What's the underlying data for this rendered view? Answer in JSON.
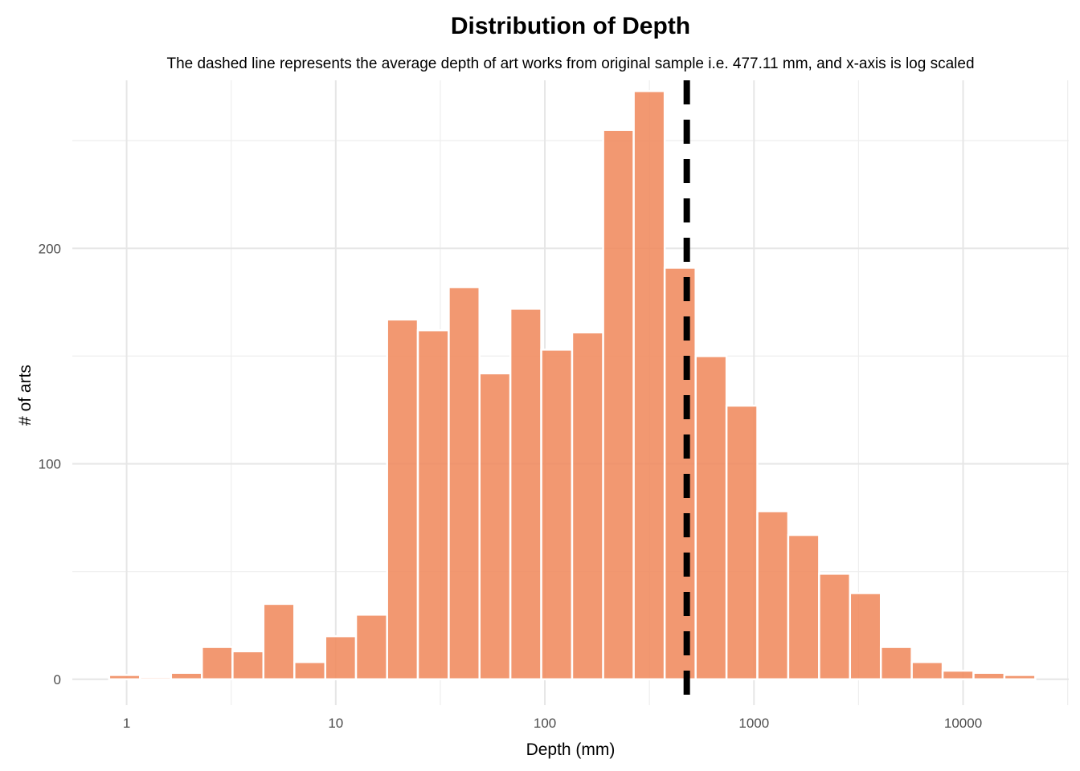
{
  "chart_data": {
    "type": "bar",
    "title": "Distribution of Depth",
    "subtitle": "The dashed line represents the average depth of art works from original sample i.e. 477.11 mm, and x-axis is log scaled",
    "xlabel": "Depth (mm)",
    "ylabel": "# of arts",
    "x_scale": "log10",
    "xlim": [
      0.55,
      32000
    ],
    "ylim": [
      -12,
      278
    ],
    "x_ticks": [
      1,
      10,
      100,
      1000,
      10000
    ],
    "x_tick_labels": [
      "1",
      "10",
      "100",
      "1000",
      "10000"
    ],
    "y_ticks": [
      0,
      100,
      200
    ],
    "y_tick_labels": [
      "0",
      "100",
      "200"
    ],
    "bin_edges": [
      0.825,
      1.16,
      1.63,
      2.29,
      3.21,
      4.51,
      6.34,
      8.91,
      12.5,
      17.6,
      24.7,
      34.7,
      48.7,
      68.4,
      96.1,
      135,
      190,
      266,
      374,
      526,
      739,
      1038,
      1458,
      2049,
      2878,
      4044,
      5682,
      7982,
      11215,
      15757,
      22138
    ],
    "counts": [
      2,
      1,
      3,
      15,
      13,
      35,
      8,
      20,
      30,
      167,
      162,
      182,
      142,
      172,
      153,
      161,
      255,
      273,
      191,
      150,
      127,
      78,
      67,
      49,
      40,
      15,
      8,
      4,
      3,
      2
    ],
    "mean_line": {
      "value": 477.11,
      "style": "dashed"
    },
    "bar_color": "#f08a5d",
    "bar_opacity": 0.88,
    "grid": true
  }
}
